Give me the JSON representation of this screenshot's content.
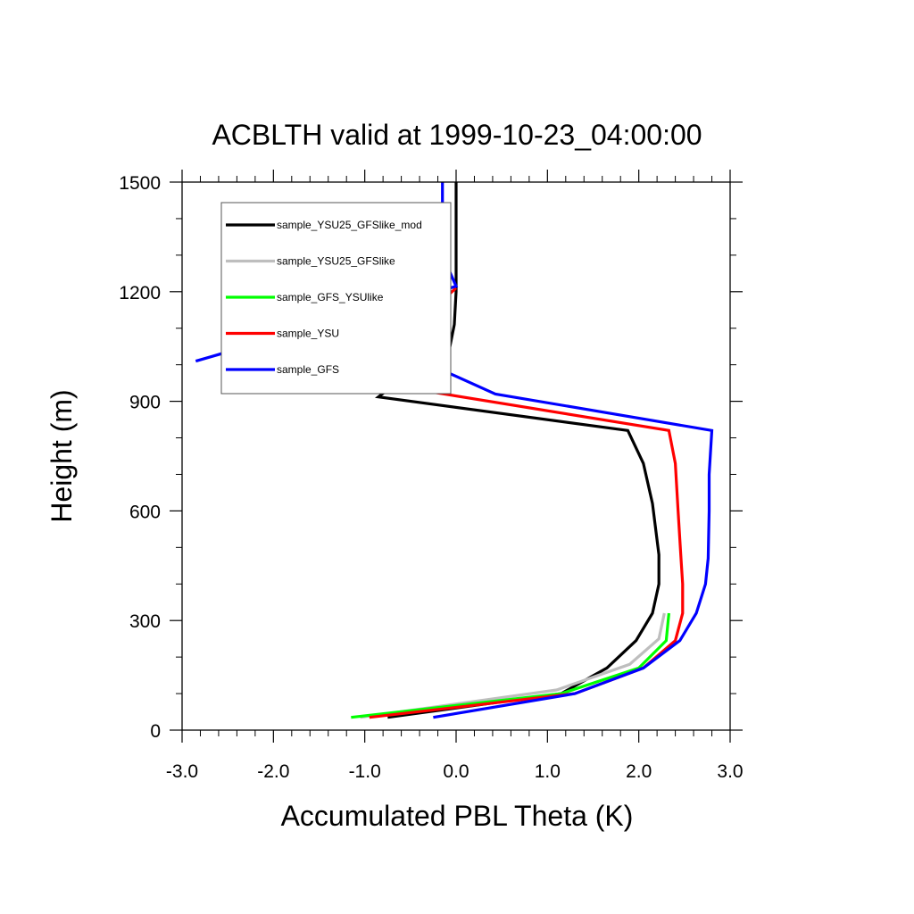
{
  "chart_data": {
    "type": "line",
    "title": "ACBLTH valid at 1999-10-23_04:00:00",
    "xlabel": "Accumulated PBL Theta (K)",
    "ylabel": "Height (m)",
    "xlim": [
      -3.0,
      3.0
    ],
    "ylim": [
      0,
      1500
    ],
    "xticks": [
      "-3.0",
      "-2.0",
      "-1.0",
      "0.0",
      "1.0",
      "2.0",
      "3.0"
    ],
    "xtick_values": [
      -3,
      -2,
      -1,
      0,
      1,
      2,
      3
    ],
    "yticks": [
      "0",
      "300",
      "600",
      "900",
      "1200",
      "1500"
    ],
    "ytick_values": [
      0,
      300,
      600,
      900,
      1200,
      1500
    ],
    "grid": false,
    "legend_position": "top-left",
    "series": [
      {
        "name": "sample_YSU25_GFSlike_mod",
        "color": "#000000",
        "points": [
          [
            -0.75,
            35
          ],
          [
            1.15,
            100
          ],
          [
            1.65,
            170
          ],
          [
            1.97,
            245
          ],
          [
            2.15,
            320
          ],
          [
            2.22,
            400
          ],
          [
            2.22,
            480
          ],
          [
            2.15,
            620
          ],
          [
            2.05,
            730
          ],
          [
            1.88,
            820
          ],
          [
            -0.85,
            912
          ],
          [
            -0.55,
            970
          ],
          [
            -0.1,
            1010
          ],
          [
            -0.02,
            1110
          ],
          [
            0.0,
            1200
          ],
          [
            0.0,
            1500
          ]
        ]
      },
      {
        "name": "sample_YSU25_GFSlike",
        "color": "#BEBEBE",
        "points": [
          [
            -1.05,
            35
          ],
          [
            1.1,
            110
          ],
          [
            1.9,
            180
          ],
          [
            2.22,
            250
          ],
          [
            2.28,
            320
          ]
        ]
      },
      {
        "name": "sample_GFS_YSUlike",
        "color": "#00FF00",
        "points": [
          [
            -1.15,
            35
          ],
          [
            1.15,
            100
          ],
          [
            2.0,
            170
          ],
          [
            2.3,
            245
          ],
          [
            2.33,
            320
          ]
        ]
      },
      {
        "name": "sample_YSU",
        "color": "#FF0000",
        "points": [
          [
            -0.95,
            35
          ],
          [
            1.3,
            100
          ],
          [
            2.05,
            170
          ],
          [
            2.4,
            245
          ],
          [
            2.48,
            320
          ],
          [
            2.48,
            400
          ],
          [
            2.46,
            480
          ],
          [
            2.43,
            600
          ],
          [
            2.4,
            730
          ],
          [
            2.33,
            820
          ],
          [
            -2.35,
            1010
          ],
          [
            -0.45,
            1110
          ],
          [
            0.0,
            1210
          ]
        ]
      },
      {
        "name": "sample_GFS",
        "color": "#0000FF",
        "points": [
          [
            -0.25,
            35
          ],
          [
            1.3,
            100
          ],
          [
            2.05,
            170
          ],
          [
            2.45,
            245
          ],
          [
            2.63,
            320
          ],
          [
            2.73,
            400
          ],
          [
            2.76,
            470
          ],
          [
            2.77,
            600
          ],
          [
            2.77,
            700
          ],
          [
            2.8,
            820
          ],
          [
            0.43,
            920
          ],
          [
            -1.35,
            1120
          ],
          [
            -2.85,
            1010
          ],
          [
            0.0,
            1215
          ],
          [
            -0.15,
            1300
          ],
          [
            -0.15,
            1500
          ]
        ]
      }
    ]
  }
}
